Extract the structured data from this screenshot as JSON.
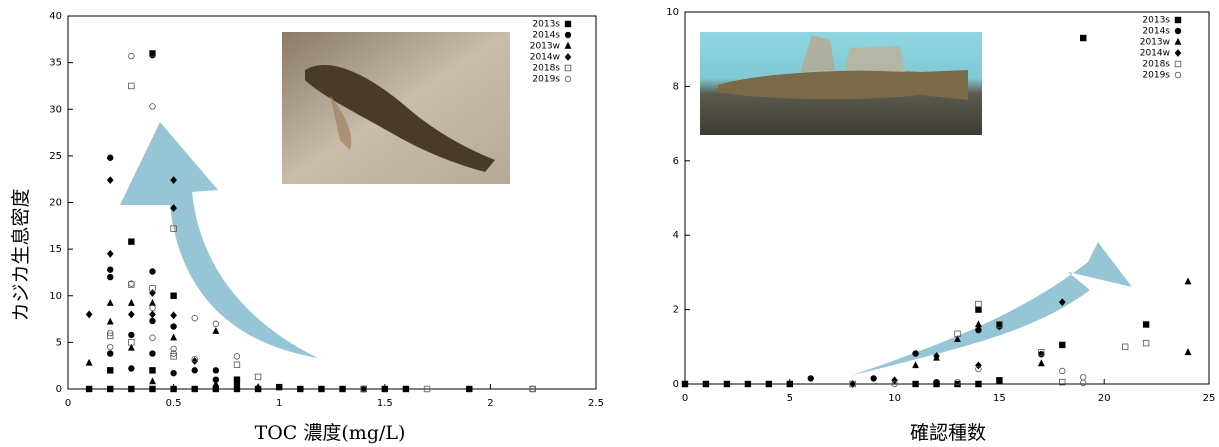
{
  "chart_data": [
    {
      "type": "scatter",
      "x_label": "TOC 濃度(mg/L)",
      "y_label": "カジカ生息密度",
      "xlim": [
        0,
        2.5
      ],
      "xticks": [
        0,
        0.5,
        1,
        1.5,
        2,
        2.5
      ],
      "ylim": [
        0,
        40
      ],
      "yticks": [
        0,
        5,
        10,
        15,
        20,
        25,
        30,
        35,
        40
      ],
      "series": [
        {
          "name": "2013s",
          "marker": "square",
          "filled": true,
          "color": "#000000",
          "x": [
            0.1,
            0.2,
            0.2,
            0.3,
            0.3,
            0.4,
            0.4,
            0.4,
            0.5,
            0.5,
            0.6,
            0.7,
            0.8,
            0.8,
            0.9,
            1.0,
            1.1,
            1.2,
            1.3,
            1.4,
            1.5,
            1.6,
            1.9
          ],
          "values": [
            0,
            0,
            2,
            15.8,
            0,
            36,
            2,
            0,
            10,
            0,
            0,
            0,
            1,
            0,
            0,
            0.2,
            0,
            0,
            0,
            0,
            0,
            0,
            0
          ]
        },
        {
          "name": "2014s",
          "marker": "circle",
          "filled": true,
          "color": "#000000",
          "x": [
            0.2,
            0.2,
            0.2,
            0.2,
            0.3,
            0.3,
            0.4,
            0.4,
            0.4,
            0.4,
            0.5,
            0.5,
            0.6,
            0.7,
            0.7,
            0.8
          ],
          "values": [
            24.8,
            12.8,
            12,
            3.8,
            5.8,
            2.2,
            35.8,
            12.6,
            7.3,
            3.8,
            6.7,
            1.7,
            2,
            2,
            1,
            0.5
          ]
        },
        {
          "name": "2013w",
          "marker": "triangle",
          "filled": true,
          "color": "#000000",
          "x": [
            0.1,
            0.2,
            0.2,
            0.3,
            0.3,
            0.4,
            0.4,
            0.5,
            0.7,
            0.7,
            0.9
          ],
          "values": [
            2.8,
            9.2,
            7.2,
            9.2,
            4.4,
            9.2,
            0.8,
            5.5,
            6.2,
            0.5,
            0.2
          ]
        },
        {
          "name": "2014w",
          "marker": "diamond",
          "filled": true,
          "color": "#000000",
          "x": [
            0.1,
            0.2,
            0.2,
            0.3,
            0.4,
            0.4,
            0.5,
            0.5,
            0.5,
            0.6,
            0.8
          ],
          "values": [
            8,
            22.4,
            14.5,
            8,
            10.3,
            8,
            22.4,
            19.4,
            7.9,
            3,
            0.6
          ]
        },
        {
          "name": "2018s",
          "marker": "square",
          "filled": false,
          "color": "#555555",
          "x": [
            0.2,
            0.3,
            0.3,
            0.3,
            0.4,
            0.4,
            0.5,
            0.5,
            0.8,
            0.9,
            1.4,
            1.7,
            2.2
          ],
          "values": [
            5.7,
            32.5,
            11.2,
            5,
            36,
            10.8,
            17.2,
            3.5,
            2.6,
            1.3,
            0,
            0,
            0
          ]
        },
        {
          "name": "2019s",
          "marker": "circle",
          "filled": false,
          "color": "#555555",
          "x": [
            0.2,
            0.2,
            0.3,
            0.3,
            0.4,
            0.4,
            0.4,
            0.5,
            0.5,
            0.6,
            0.6,
            0.7,
            0.8,
            1.4,
            2.2
          ],
          "values": [
            6,
            4.5,
            35.7,
            11.3,
            30.3,
            8.7,
            5.5,
            3.8,
            4.3,
            7.6,
            3.2,
            7,
            3.5,
            0,
            0
          ]
        }
      ]
    },
    {
      "type": "scatter",
      "x_label": "確認種数",
      "xlim": [
        0,
        25
      ],
      "xticks": [
        0,
        5,
        10,
        15,
        20,
        25
      ],
      "ylim": [
        0,
        10
      ],
      "yticks": [
        0,
        2,
        4,
        6,
        8,
        10
      ],
      "series": [
        {
          "name": "2013s",
          "marker": "square",
          "filled": true,
          "color": "#000000",
          "x": [
            0,
            1,
            2,
            3,
            4,
            5,
            11,
            12,
            13,
            14,
            14,
            15,
            15,
            18,
            19,
            22
          ],
          "values": [
            0,
            0,
            0,
            0,
            0,
            0,
            0,
            0,
            0,
            0,
            2,
            0.1,
            1.6,
            1.05,
            9.3,
            1.6
          ]
        },
        {
          "name": "2014s",
          "marker": "circle",
          "filled": true,
          "color": "#000000",
          "x": [
            0,
            6,
            9,
            11,
            12,
            14,
            15,
            17
          ],
          "values": [
            0,
            0.15,
            0.15,
            0.82,
            0.05,
            1.45,
            1.55,
            0.8
          ]
        },
        {
          "name": "2013w",
          "marker": "triangle",
          "filled": true,
          "color": "#000000",
          "x": [
            11,
            12,
            13,
            14,
            17,
            24,
            24
          ],
          "values": [
            0.5,
            0.7,
            1.2,
            1.6,
            0.55,
            2.75,
            0.85
          ]
        },
        {
          "name": "2014w",
          "marker": "diamond",
          "filled": true,
          "color": "#000000",
          "x": [
            8,
            10,
            12,
            14,
            15,
            18
          ],
          "values": [
            0,
            0.1,
            0.75,
            0.5,
            1.55,
            2.2
          ]
        },
        {
          "name": "2018s",
          "marker": "square",
          "filled": false,
          "color": "#555555",
          "x": [
            8,
            13,
            14,
            15,
            17,
            18,
            21,
            22
          ],
          "values": [
            0,
            1.35,
            2.15,
            1.6,
            0.85,
            0.05,
            1.0,
            1.1
          ]
        },
        {
          "name": "2019s",
          "marker": "circle",
          "filled": false,
          "color": "#555555",
          "x": [
            10,
            13,
            14,
            18,
            19,
            19
          ],
          "values": [
            0,
            0.05,
            0.4,
            0.35,
            0.18,
            0.03
          ]
        }
      ]
    }
  ]
}
